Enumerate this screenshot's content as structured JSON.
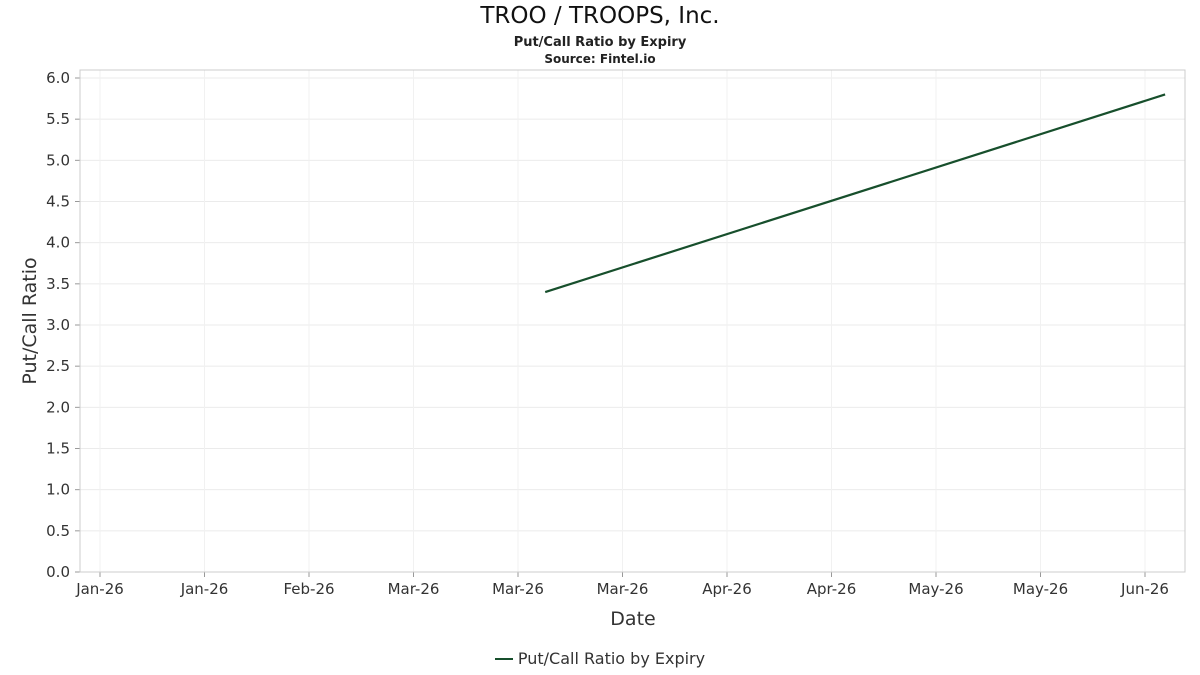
{
  "chart_data": {
    "type": "line",
    "title": "TROO / TROOPS, Inc.",
    "subtitle": "Put/Call Ratio by Expiry",
    "source": "Source: Fintel.io",
    "xlabel": "Date",
    "ylabel": "Put/Call Ratio",
    "x_tick_labels": [
      "Jan-26",
      "Jan-26",
      "Feb-26",
      "Mar-26",
      "Mar-26",
      "Mar-26",
      "Apr-26",
      "Apr-26",
      "May-26",
      "May-26",
      "Jun-26"
    ],
    "y_tick_labels": [
      "0.0",
      "0.5",
      "1.0",
      "1.5",
      "2.0",
      "2.5",
      "3.0",
      "3.5",
      "4.0",
      "4.5",
      "5.0",
      "5.5",
      "6.0"
    ],
    "ylim": [
      0,
      6
    ],
    "y_tick_step": 0.5,
    "grid": true,
    "legend_position": "bottom",
    "colors": {
      "line": "#174f2c",
      "grid": "#ebebeb",
      "border": "#cccccc",
      "tick_text": "#333333"
    },
    "series": [
      {
        "name": "Put/Call Ratio by Expiry",
        "color": "#174f2c",
        "points": [
          {
            "x": "Mar-26",
            "x_frac": 0.421,
            "y": 3.4
          },
          {
            "x": "Jun-26",
            "x_frac": 0.982,
            "y": 5.8
          }
        ]
      }
    ]
  }
}
